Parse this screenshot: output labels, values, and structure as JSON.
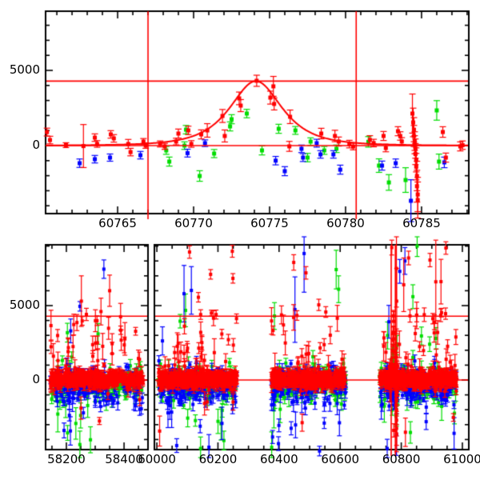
{
  "figure": {
    "background": "#ffffff",
    "axis_color": "#000000",
    "ref_line_color": "#ff0000"
  },
  "colors": {
    "red_series": "#ff0000",
    "green_series": "#00dd00",
    "blue_series": "#0000ff",
    "model_curve": "#ff0000"
  },
  "chart_data": [
    {
      "id": "zoom-panel",
      "type": "scatter",
      "title": "",
      "xlabel": "",
      "ylabel": "",
      "grid": false,
      "legend": null,
      "xlim": [
        60760.26,
        60788.11
      ],
      "ylim": [
        -4521,
        8936
      ],
      "x_ticks": {
        "major": [
          60765,
          60770,
          60775,
          60780,
          60785
        ],
        "labels": [
          "60765",
          "60770",
          "60775",
          "60780",
          "60785"
        ],
        "minor_step": 1
      },
      "y_ticks": {
        "major": [
          0,
          5000
        ],
        "labels": [
          "0",
          "5000"
        ],
        "minor_step": 1000
      },
      "ref_lines": {
        "horizontal": [
          0,
          4290
        ],
        "vertical": [
          60767.0,
          60780.7
        ]
      },
      "model_curve": {
        "form": "paczynski",
        "t0": 60774.1,
        "tE": 2.2,
        "u0": 1.0,
        "peak_flux": 4290,
        "baseline": 0
      },
      "series": [
        {
          "name": "green",
          "color": "#00dd00",
          "points": [
            [
              60768.2,
              -320,
              260
            ],
            [
              60768.4,
              -1064,
              300
            ],
            [
              60769.4,
              0,
              250
            ],
            [
              60769.5,
              1060,
              280
            ],
            [
              60770.4,
              -2021,
              350
            ],
            [
              60771.35,
              -530,
              270
            ],
            [
              60772.4,
              1276,
              300
            ],
            [
              60772.5,
              1755,
              300
            ],
            [
              60773.5,
              2130,
              280
            ],
            [
              60774.5,
              -320,
              300
            ],
            [
              60775.6,
              1117,
              300
            ],
            [
              60776.7,
              1010,
              260
            ],
            [
              60777.5,
              -797,
              280
            ],
            [
              60777.7,
              266,
              250
            ],
            [
              60778.6,
              -320,
              260
            ],
            [
              60779.4,
              -210,
              250
            ],
            [
              60781.5,
              250,
              350
            ],
            [
              60782.2,
              -1330,
              450
            ],
            [
              60782.85,
              -2450,
              520
            ],
            [
              60783.95,
              -2290,
              820
            ],
            [
              60786.0,
              2340,
              650
            ],
            [
              60786.15,
              -1064,
              500
            ]
          ]
        },
        {
          "name": "blue",
          "color": "#0000ff",
          "points": [
            [
              60760.2,
              -1750,
              300
            ],
            [
              60762.5,
              -1170,
              280
            ],
            [
              60763.5,
              -904,
              250
            ],
            [
              60764.5,
              -798,
              240
            ],
            [
              60766.5,
              -638,
              250
            ],
            [
              60769.6,
              -500,
              260
            ],
            [
              60770.75,
              160,
              220
            ],
            [
              60775.4,
              -1000,
              280
            ],
            [
              60776.0,
              -1700,
              300
            ],
            [
              60777.1,
              -213,
              250
            ],
            [
              60777.2,
              -797,
              260
            ],
            [
              60778.1,
              160,
              260
            ],
            [
              60778.35,
              -585,
              250
            ],
            [
              60779.2,
              -585,
              250
            ],
            [
              60779.65,
              -1600,
              300
            ],
            [
              60782.4,
              -1330,
              300
            ],
            [
              60783.3,
              -1170,
              280
            ],
            [
              60784.3,
              -3670,
              1400
            ],
            [
              60786.5,
              -1117,
              350
            ]
          ]
        },
        {
          "name": "red",
          "color": "#ff0000",
          "points": [
            [
              60760.35,
              900,
              260
            ],
            [
              60760.55,
              370,
              250
            ],
            [
              60761.6,
              30,
              160
            ],
            [
              60762.75,
              -30,
              1430
            ],
            [
              60763.5,
              530,
              250
            ],
            [
              60763.65,
              110,
              220
            ],
            [
              60764.55,
              745,
              250
            ],
            [
              60764.75,
              480,
              250
            ],
            [
              60765.7,
              110,
              300
            ],
            [
              60765.85,
              -430,
              250
            ],
            [
              60766.7,
              270,
              200
            ],
            [
              60766.85,
              0,
              180
            ],
            [
              60767.8,
              110,
              200
            ],
            [
              60768.1,
              -50,
              200
            ],
            [
              60768.85,
              270,
              220
            ],
            [
              60769.0,
              800,
              300
            ],
            [
              60769.65,
              1010,
              280
            ],
            [
              60769.85,
              110,
              220
            ],
            [
              60770.5,
              745,
              300
            ],
            [
              60770.9,
              1010,
              450
            ],
            [
              60771.9,
              1970,
              430
            ],
            [
              60772.05,
              640,
              400
            ],
            [
              60773.0,
              3140,
              420
            ],
            [
              60773.1,
              2660,
              400
            ],
            [
              60774.15,
              4310,
              370
            ],
            [
              60775.05,
              3190,
              430
            ],
            [
              60775.25,
              3940,
              660
            ],
            [
              60775.3,
              2770,
              400
            ],
            [
              60776.3,
              -50,
              330
            ],
            [
              60776.35,
              1915,
              450
            ],
            [
              60778.4,
              800,
              350
            ],
            [
              60779.3,
              640,
              380
            ],
            [
              60779.55,
              270,
              300
            ],
            [
              60780.25,
              100,
              250
            ],
            [
              60780.5,
              -60,
              220
            ],
            [
              60781.6,
              380,
              280
            ],
            [
              60781.85,
              170,
              250
            ],
            [
              60782.5,
              640,
              300
            ],
            [
              60782.65,
              -160,
              250
            ],
            [
              60783.45,
              957,
              300
            ],
            [
              60783.6,
              640,
              280
            ],
            [
              60783.7,
              270,
              260
            ],
            [
              60784.4,
              2130,
              1300
            ],
            [
              60784.45,
              1540,
              950
            ],
            [
              60784.5,
              1060,
              800
            ],
            [
              60784.5,
              640,
              700
            ],
            [
              60784.55,
              300,
              620
            ],
            [
              60784.55,
              60,
              600
            ],
            [
              60784.6,
              -200,
              640
            ],
            [
              60784.6,
              -560,
              700
            ],
            [
              60784.65,
              -950,
              800
            ],
            [
              60784.65,
              -1400,
              880
            ],
            [
              60784.7,
              -2020,
              980
            ],
            [
              60784.7,
              -2700,
              1060
            ],
            [
              60784.75,
              -3250,
              1140
            ],
            [
              60784.75,
              -3620,
              1200
            ],
            [
              60786.4,
              904,
              350
            ],
            [
              60786.6,
              -798,
              300
            ],
            [
              60787.55,
              -53,
              300
            ],
            [
              60787.7,
              30,
              280
            ]
          ]
        }
      ]
    },
    {
      "id": "full-panel",
      "type": "scatter",
      "title": "",
      "xlabel": "",
      "ylabel": "",
      "grid": false,
      "legend": null,
      "broken_x_axis": true,
      "segments": [
        {
          "xlim": [
            58128,
            58483
          ],
          "x_ticks_major": [
            58200,
            58400
          ],
          "x_tick_labels": [
            "58200",
            "58400"
          ]
        },
        {
          "xlim": [
            59992,
            61021
          ],
          "x_ticks_major": [
            60000,
            60200,
            60400,
            60600,
            60800,
            61000
          ],
          "x_tick_labels": [
            "60000",
            "60200",
            "60400",
            "60600",
            "60800",
            "61000"
          ]
        }
      ],
      "x_minor_step": 50,
      "ylim": [
        -4677,
        9086
      ],
      "y_ticks": {
        "major": [
          0,
          5000
        ],
        "labels": [
          "0",
          "5000"
        ],
        "minor_step": 1000
      },
      "ref_lines": {
        "horizontal": [
          0,
          4290
        ],
        "vertical": [
          60767.0,
          60780.7
        ]
      },
      "include_zoom_series": true,
      "seed": 20250515,
      "seasons": [
        {
          "x_start": 58145,
          "x_end": 58465,
          "counts": {
            "red": 420,
            "green": 160,
            "blue": 160
          }
        },
        {
          "x_start": 60005,
          "x_end": 60262,
          "counts": {
            "red": 440,
            "green": 160,
            "blue": 170
          }
        },
        {
          "x_start": 60375,
          "x_end": 60618,
          "counts": {
            "red": 400,
            "green": 140,
            "blue": 150
          }
        },
        {
          "x_start": 60730,
          "x_end": 60980,
          "counts": {
            "red": 440,
            "green": 150,
            "blue": 160
          }
        }
      ],
      "noise": {
        "red": {
          "offset": 40,
          "sigma": 260,
          "err": [
            130,
            400
          ],
          "spike_frac": 0.08,
          "spike_pos_prob": 0.85
        },
        "green": {
          "offset": -280,
          "sigma": 540,
          "err": [
            180,
            520
          ],
          "spike_frac": 0.06,
          "spike_pos_prob": 0.3
        },
        "blue": {
          "offset": -400,
          "sigma": 620,
          "err": [
            150,
            480
          ],
          "spike_frac": 0.06,
          "spike_pos_prob": 0.25
        }
      },
      "outliers": {
        "red": [
          [
            58252,
            5300,
            1700
          ],
          [
            58320,
            4600,
            900
          ],
          [
            58350,
            6000,
            1050
          ],
          [
            58388,
            4250,
            900
          ],
          [
            60107,
            8600,
            420
          ],
          [
            60136,
            5560,
            320
          ],
          [
            60176,
            7100,
            320
          ],
          [
            60194,
            4400,
            300
          ],
          [
            60247,
            8650,
            400
          ],
          [
            60249,
            6830,
            320
          ],
          [
            60448,
            7900,
            520
          ],
          [
            60488,
            7200,
            420
          ],
          [
            60530,
            5050,
            380
          ],
          [
            60553,
            4570,
            360
          ],
          [
            60769,
            8900,
            500
          ],
          [
            60784.2,
            7500,
            2600
          ],
          [
            60785,
            5300,
            2200
          ],
          [
            60808,
            6400,
            1800
          ],
          [
            60824,
            8200,
            460
          ],
          [
            60894,
            8060,
            450
          ],
          [
            60913,
            6600,
            2800
          ],
          [
            60930,
            6610,
            1500
          ],
          [
            60945,
            4460,
            380
          ],
          [
            60946,
            8870,
            420
          ]
        ],
        "green": [
          [
            58310,
            3100,
            700
          ],
          [
            60094,
            4680,
            1100
          ],
          [
            60385,
            4300,
            900
          ],
          [
            60587,
            7420,
            1300
          ],
          [
            60595,
            6100,
            900
          ],
          [
            60838,
            5600,
            800
          ],
          [
            60852,
            9000,
            700
          ],
          [
            60866,
            2960,
            600
          ]
        ],
        "blue": [
          [
            58192,
            -3390,
            500
          ],
          [
            58215,
            3300,
            800
          ],
          [
            58247,
            4950,
            320
          ],
          [
            58330,
            7450,
            620
          ],
          [
            60089,
            5800,
            1900
          ],
          [
            60113,
            6020,
            1600
          ],
          [
            60452,
            4730,
            2200
          ],
          [
            60482,
            8500,
            2600
          ],
          [
            60795,
            7300,
            800
          ],
          [
            60812,
            8000,
            900
          ]
        ]
      }
    }
  ]
}
